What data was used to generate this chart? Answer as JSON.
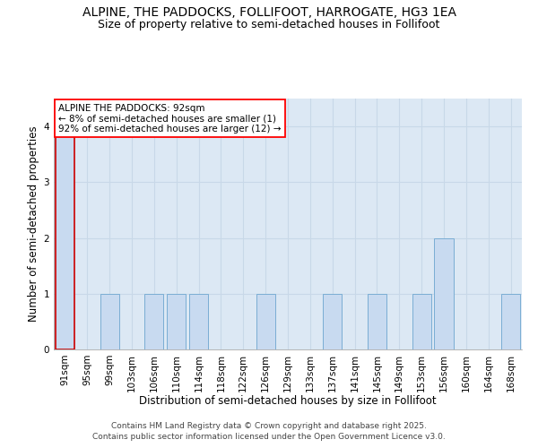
{
  "title_line1": "ALPINE, THE PADDOCKS, FOLLIFOOT, HARROGATE, HG3 1EA",
  "title_line2": "Size of property relative to semi-detached houses in Follifoot",
  "categories": [
    "91sqm",
    "95sqm",
    "99sqm",
    "103sqm",
    "106sqm",
    "110sqm",
    "114sqm",
    "118sqm",
    "122sqm",
    "126sqm",
    "129sqm",
    "133sqm",
    "137sqm",
    "141sqm",
    "145sqm",
    "149sqm",
    "153sqm",
    "156sqm",
    "160sqm",
    "164sqm",
    "168sqm"
  ],
  "values": [
    4,
    0,
    1,
    0,
    1,
    1,
    1,
    0,
    0,
    1,
    0,
    0,
    1,
    0,
    1,
    0,
    1,
    2,
    0,
    0,
    1
  ],
  "bar_color": "#c8daf0",
  "bar_edge_color": "#7aadd4",
  "highlight_bar_index": 0,
  "highlight_bar_edge_color": "#cc0000",
  "xlabel": "Distribution of semi-detached houses by size in Follifoot",
  "ylabel": "Number of semi-detached properties",
  "ylim": [
    0,
    4.5
  ],
  "yticks": [
    0,
    1,
    2,
    3,
    4
  ],
  "grid_color": "#c8d8e8",
  "background_color": "#dce8f4",
  "annotation_title": "ALPINE THE PADDOCKS: 92sqm",
  "annotation_line1": "← 8% of semi-detached houses are smaller (1)",
  "annotation_line2": "92% of semi-detached houses are larger (12) →",
  "footer_line1": "Contains HM Land Registry data © Crown copyright and database right 2025.",
  "footer_line2": "Contains public sector information licensed under the Open Government Licence v3.0.",
  "title_fontsize": 10,
  "subtitle_fontsize": 9,
  "axis_label_fontsize": 8.5,
  "tick_fontsize": 7.5,
  "annotation_fontsize": 7.5,
  "footer_fontsize": 6.5
}
